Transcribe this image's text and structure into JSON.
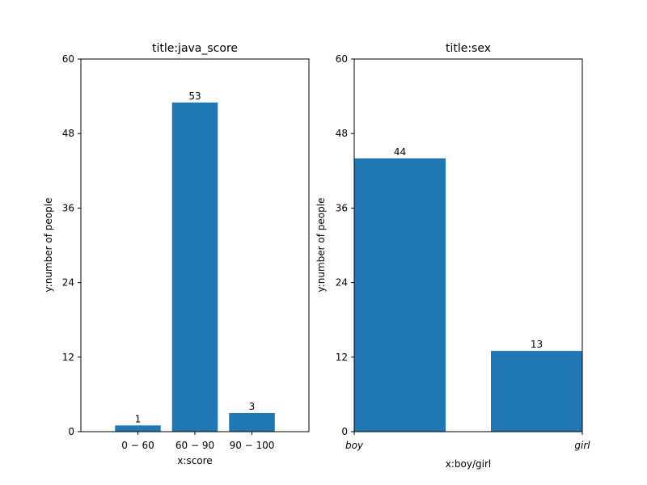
{
  "chart_data": [
    {
      "type": "bar",
      "title": "title:java_score",
      "xlabel": "x:score",
      "ylabel": "y:number of people",
      "categories": [
        "0 − 60",
        "60 − 90",
        "90 − 100"
      ],
      "values": [
        1,
        53,
        3
      ],
      "data_labels": [
        "1",
        "53",
        "3"
      ],
      "ylim": [
        0,
        60
      ],
      "yticks": [
        "0",
        "12",
        "24",
        "36",
        "48",
        "60"
      ],
      "grid": false,
      "legend": false,
      "bar_color": "#1f77b4"
    },
    {
      "type": "bar",
      "title": "title:sex",
      "xlabel": "x:boy/girl",
      "ylabel": "y:number of people",
      "categories": [
        "boy",
        "girl"
      ],
      "values": [
        44,
        13
      ],
      "data_labels": [
        "44",
        "13"
      ],
      "ylim": [
        0,
        60
      ],
      "yticks": [
        "0",
        "12",
        "24",
        "36",
        "48",
        "60"
      ],
      "grid": false,
      "legend": false,
      "bar_color": "#1f77b4"
    }
  ]
}
